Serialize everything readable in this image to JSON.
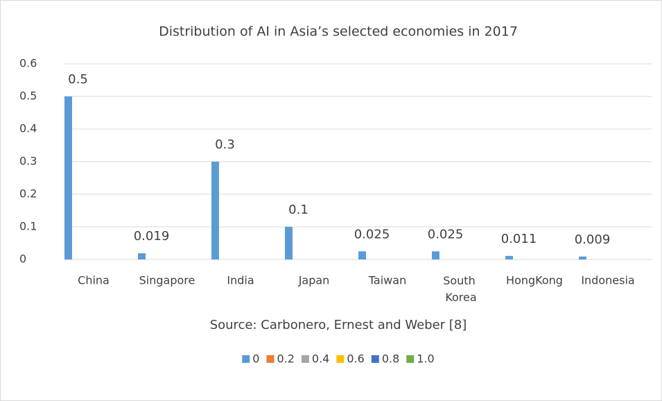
{
  "chart_data": {
    "type": "bar",
    "title": "Distribution of AI in Asia’s selected economies in 2017",
    "x_label": "Source: Carbonero, Ernest and Weber [8]",
    "categories": [
      "China",
      "Singapore",
      "India",
      "Japan",
      "Taiwan",
      "South Korea",
      "HongKong",
      "Indonesia"
    ],
    "series": [
      {
        "name": "0",
        "color": "#5b9bd5",
        "values": [
          0.5,
          0.019,
          0.3,
          0.1,
          0.025,
          0.025,
          0.011,
          0.009
        ]
      },
      {
        "name": "0.2",
        "color": "#ed7d31",
        "values": [
          null,
          null,
          null,
          null,
          null,
          null,
          null,
          null
        ]
      },
      {
        "name": "0.4",
        "color": "#a5a5a5",
        "values": [
          null,
          null,
          null,
          null,
          null,
          null,
          null,
          null
        ]
      },
      {
        "name": "0.6",
        "color": "#ffc000",
        "values": [
          null,
          null,
          null,
          null,
          null,
          null,
          null,
          null
        ]
      },
      {
        "name": "0.8",
        "color": "#4472c4",
        "values": [
          null,
          null,
          null,
          null,
          null,
          null,
          null,
          null
        ]
      },
      {
        "name": "1.0",
        "color": "#70ad47",
        "values": [
          null,
          null,
          null,
          null,
          null,
          null,
          null,
          null
        ]
      }
    ],
    "ylim": [
      0,
      0.6
    ],
    "yticks": [
      0,
      0.1,
      0.2,
      0.3,
      0.4,
      0.5,
      0.6
    ],
    "grid": true,
    "legend": "bottom"
  }
}
